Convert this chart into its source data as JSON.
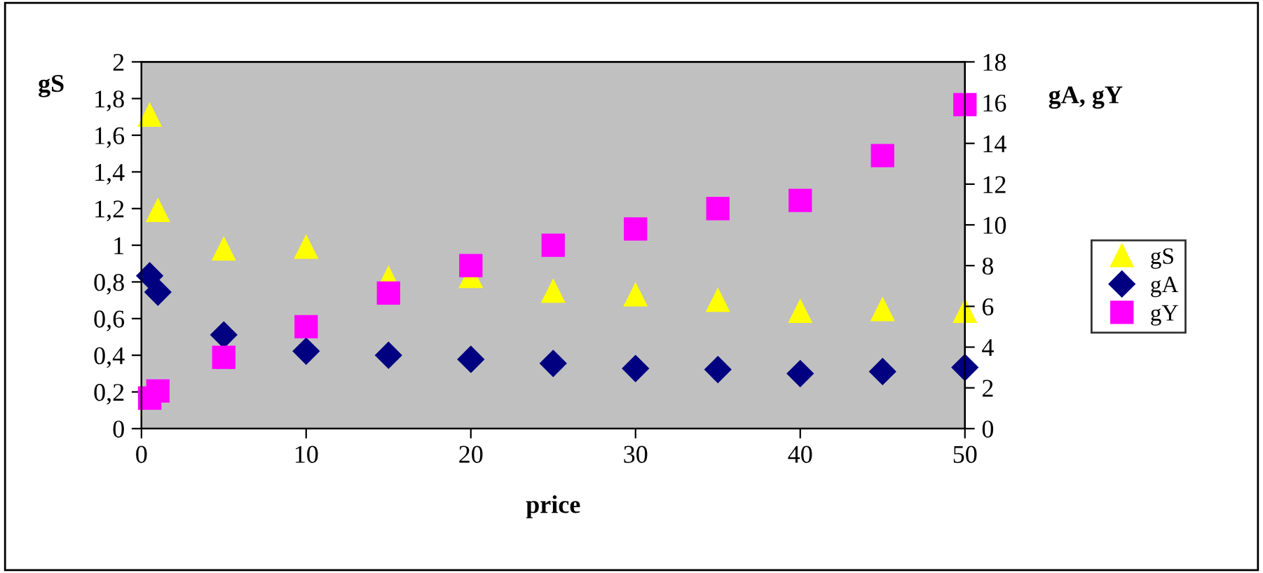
{
  "chart_data": {
    "type": "scatter",
    "xlabel": "price",
    "ylabel": "gS",
    "y2label": "gA, gY",
    "x": [
      0.5,
      1,
      5,
      10,
      15,
      20,
      25,
      30,
      35,
      40,
      45,
      50
    ],
    "series": [
      {
        "name": "gS",
        "color": "#ffff00",
        "marker": "triangle",
        "values": [
          1.71,
          1.19,
          0.98,
          0.99,
          0.82,
          0.83,
          0.75,
          0.73,
          0.7,
          0.64,
          0.65,
          0.64
        ]
      },
      {
        "name": "gA",
        "color": "#000080",
        "marker": "diamond",
        "axis": "y2",
        "values": [
          7.5,
          6.7,
          4.6,
          3.8,
          3.6,
          3.4,
          3.2,
          2.95,
          2.9,
          2.7,
          2.8,
          3.0
        ]
      },
      {
        "name": "gY",
        "color": "#ff00ff",
        "marker": "square",
        "axis": "y2",
        "values": [
          1.5,
          1.85,
          3.5,
          5.0,
          6.65,
          8.0,
          9.0,
          9.8,
          10.8,
          11.2,
          13.4,
          15.9
        ]
      }
    ],
    "xlim": [
      0,
      50
    ],
    "xticks": [
      0,
      10,
      20,
      30,
      40,
      50
    ],
    "ylim": [
      0,
      2
    ],
    "yticks": [
      0,
      {
        "value": 0.2,
        "label": "0,2"
      },
      {
        "value": 0.4,
        "label": "0,4"
      },
      {
        "value": 0.6,
        "label": "0,6"
      },
      {
        "value": 0.8,
        "label": "0,8"
      },
      1,
      {
        "value": 1.2,
        "label": "1,2"
      },
      {
        "value": 1.4,
        "label": "1,4"
      },
      {
        "value": 1.6,
        "label": "1,6"
      },
      {
        "value": 1.8,
        "label": "1,8"
      },
      2
    ],
    "y2lim": [
      0,
      18
    ],
    "y2ticks": [
      0,
      2,
      4,
      6,
      8,
      10,
      12,
      14,
      16,
      18
    ],
    "grid": false,
    "legend": "right"
  }
}
